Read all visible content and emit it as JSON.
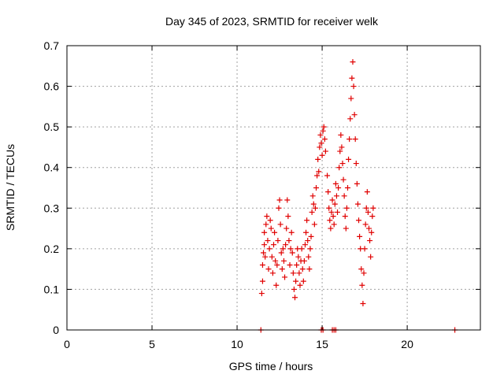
{
  "chart_data": {
    "type": "scatter",
    "title": "Day 345 of 2023, SRMTID for receiver welk",
    "xlabel": "GPS time / hours",
    "ylabel": "SRMTID / TECUs",
    "xlim": [
      0,
      24.3
    ],
    "ylim": [
      0,
      0.7
    ],
    "x_ticks": [
      0,
      5,
      10,
      15,
      20
    ],
    "y_ticks": [
      0,
      0.1,
      0.2,
      0.3,
      0.4,
      0.5,
      0.6,
      0.7
    ],
    "x_tick_labels": [
      "0",
      "5",
      "10",
      "15",
      "20"
    ],
    "y_tick_labels": [
      "0",
      "0.1",
      "0.2",
      "0.3",
      "0.4",
      "0.5",
      "0.6",
      "0.7"
    ],
    "grid": true,
    "marker": "plus",
    "series": [
      {
        "name": "SRMTID",
        "color": "#e00000",
        "points": [
          [
            11.4,
            0.0
          ],
          [
            14.95,
            0.0
          ],
          [
            15.05,
            0.0
          ],
          [
            15.6,
            0.0
          ],
          [
            15.7,
            0.0
          ],
          [
            15.8,
            0.0
          ],
          [
            22.8,
            0.0
          ],
          [
            11.45,
            0.09
          ],
          [
            11.5,
            0.12
          ],
          [
            11.5,
            0.16
          ],
          [
            11.55,
            0.19
          ],
          [
            11.6,
            0.21
          ],
          [
            11.6,
            0.24
          ],
          [
            11.65,
            0.18
          ],
          [
            11.7,
            0.26
          ],
          [
            11.75,
            0.28
          ],
          [
            11.8,
            0.22
          ],
          [
            11.85,
            0.15
          ],
          [
            11.9,
            0.2
          ],
          [
            11.95,
            0.27
          ],
          [
            12.0,
            0.25
          ],
          [
            12.05,
            0.18
          ],
          [
            12.1,
            0.14
          ],
          [
            12.15,
            0.21
          ],
          [
            12.2,
            0.24
          ],
          [
            12.25,
            0.17
          ],
          [
            12.3,
            0.11
          ],
          [
            12.35,
            0.16
          ],
          [
            12.4,
            0.22
          ],
          [
            12.45,
            0.3
          ],
          [
            12.5,
            0.32
          ],
          [
            12.55,
            0.26
          ],
          [
            12.6,
            0.19
          ],
          [
            12.65,
            0.15
          ],
          [
            12.7,
            0.2
          ],
          [
            12.75,
            0.17
          ],
          [
            12.8,
            0.13
          ],
          [
            12.85,
            0.21
          ],
          [
            12.9,
            0.25
          ],
          [
            12.95,
            0.32
          ],
          [
            13.0,
            0.28
          ],
          [
            13.05,
            0.22
          ],
          [
            13.1,
            0.16
          ],
          [
            13.15,
            0.2
          ],
          [
            13.2,
            0.24
          ],
          [
            13.25,
            0.19
          ],
          [
            13.3,
            0.14
          ],
          [
            13.35,
            0.1
          ],
          [
            13.4,
            0.08
          ],
          [
            13.45,
            0.12
          ],
          [
            13.5,
            0.16
          ],
          [
            13.55,
            0.2
          ],
          [
            13.6,
            0.18
          ],
          [
            13.65,
            0.14
          ],
          [
            13.7,
            0.11
          ],
          [
            13.75,
            0.17
          ],
          [
            13.8,
            0.2
          ],
          [
            13.85,
            0.15
          ],
          [
            13.9,
            0.12
          ],
          [
            13.95,
            0.17
          ],
          [
            14.0,
            0.21
          ],
          [
            14.05,
            0.24
          ],
          [
            14.1,
            0.27
          ],
          [
            14.15,
            0.22
          ],
          [
            14.2,
            0.18
          ],
          [
            14.25,
            0.15
          ],
          [
            14.3,
            0.2
          ],
          [
            14.35,
            0.23
          ],
          [
            14.4,
            0.29
          ],
          [
            14.45,
            0.33
          ],
          [
            14.5,
            0.31
          ],
          [
            14.55,
            0.26
          ],
          [
            14.6,
            0.3
          ],
          [
            14.65,
            0.35
          ],
          [
            14.7,
            0.38
          ],
          [
            14.75,
            0.42
          ],
          [
            14.8,
            0.39
          ],
          [
            14.85,
            0.45
          ],
          [
            14.9,
            0.48
          ],
          [
            14.95,
            0.46
          ],
          [
            15.0,
            0.43
          ],
          [
            15.05,
            0.49
          ],
          [
            15.1,
            0.5
          ],
          [
            15.15,
            0.47
          ],
          [
            15.2,
            0.44
          ],
          [
            15.3,
            0.38
          ],
          [
            15.35,
            0.34
          ],
          [
            15.4,
            0.3
          ],
          [
            15.45,
            0.27
          ],
          [
            15.5,
            0.25
          ],
          [
            15.55,
            0.29
          ],
          [
            15.6,
            0.32
          ],
          [
            15.65,
            0.28
          ],
          [
            15.7,
            0.26
          ],
          [
            15.75,
            0.31
          ],
          [
            15.8,
            0.36
          ],
          [
            15.85,
            0.33
          ],
          [
            15.9,
            0.29
          ],
          [
            15.95,
            0.35
          ],
          [
            16.0,
            0.4
          ],
          [
            16.05,
            0.44
          ],
          [
            16.1,
            0.48
          ],
          [
            16.15,
            0.45
          ],
          [
            16.2,
            0.41
          ],
          [
            16.25,
            0.37
          ],
          [
            16.3,
            0.33
          ],
          [
            16.35,
            0.28
          ],
          [
            16.4,
            0.25
          ],
          [
            16.45,
            0.3
          ],
          [
            16.5,
            0.35
          ],
          [
            16.55,
            0.42
          ],
          [
            16.6,
            0.47
          ],
          [
            16.65,
            0.52
          ],
          [
            16.7,
            0.57
          ],
          [
            16.75,
            0.62
          ],
          [
            16.8,
            0.66
          ],
          [
            16.85,
            0.6
          ],
          [
            16.9,
            0.53
          ],
          [
            16.95,
            0.47
          ],
          [
            17.0,
            0.41
          ],
          [
            17.05,
            0.36
          ],
          [
            17.1,
            0.31
          ],
          [
            17.15,
            0.27
          ],
          [
            17.2,
            0.23
          ],
          [
            17.25,
            0.2
          ],
          [
            17.3,
            0.15
          ],
          [
            17.35,
            0.11
          ],
          [
            17.4,
            0.065
          ],
          [
            17.45,
            0.14
          ],
          [
            17.5,
            0.2
          ],
          [
            17.55,
            0.26
          ],
          [
            17.6,
            0.3
          ],
          [
            17.65,
            0.34
          ],
          [
            17.7,
            0.29
          ],
          [
            17.75,
            0.25
          ],
          [
            17.8,
            0.22
          ],
          [
            17.85,
            0.18
          ],
          [
            17.9,
            0.24
          ],
          [
            17.95,
            0.28
          ],
          [
            18.0,
            0.3
          ]
        ]
      }
    ]
  }
}
